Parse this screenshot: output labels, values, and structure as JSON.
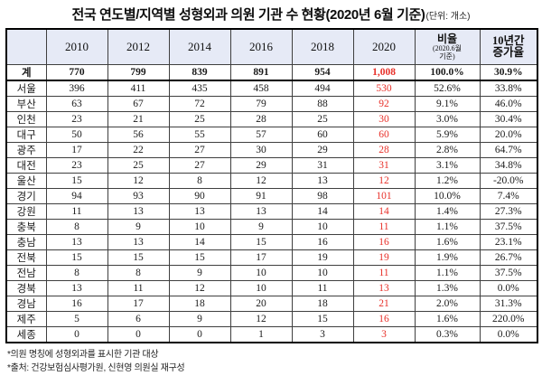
{
  "title": {
    "main": "전국 연도별/지역별 성형외과 의원 기관 수 현황(2020년 6월 기준)",
    "unit": "(단위: 개소)"
  },
  "table": {
    "region_header": "",
    "years": [
      "2010",
      "2012",
      "2014",
      "2016",
      "2018",
      "2020"
    ],
    "ratio_header": {
      "main": "비율",
      "sub1": "(2020.6월",
      "sub2": "기준)"
    },
    "growth_header": {
      "line1": "10년간",
      "line2": "증가율"
    }
  },
  "footnotes": [
    "*의원 명칭에 성형외과를 표시한 기관 대상",
    "*출처: 건강보험심사평가원, 신현영 의원실 재구성"
  ],
  "colors": {
    "highlight_red": "#e8312a",
    "header_bg": "#e6eaf6",
    "outer_border": "#000000"
  },
  "chart_data": {
    "type": "table",
    "title": "전국 연도별/지역별 성형외과 의원 기관 수 현황(2020년 6월 기준)",
    "unit": "개소",
    "categories": [
      "2010",
      "2012",
      "2014",
      "2016",
      "2018",
      "2020"
    ],
    "ratio_label": "비율(2020.6월 기준)",
    "growth_label": "10년간 증가율",
    "highlight_column": "2020",
    "series": [
      {
        "name": "계",
        "values": [
          770,
          799,
          839,
          891,
          954,
          1008
        ],
        "ratio": "100.0%",
        "growth": "30.9%"
      },
      {
        "name": "서울",
        "values": [
          396,
          411,
          435,
          458,
          494,
          530
        ],
        "ratio": "52.6%",
        "growth": "33.8%"
      },
      {
        "name": "부산",
        "values": [
          63,
          67,
          72,
          79,
          88,
          92
        ],
        "ratio": "9.1%",
        "growth": "46.0%"
      },
      {
        "name": "인천",
        "values": [
          23,
          21,
          25,
          28,
          25,
          30
        ],
        "ratio": "3.0%",
        "growth": "30.4%"
      },
      {
        "name": "대구",
        "values": [
          50,
          56,
          55,
          57,
          60,
          60
        ],
        "ratio": "5.9%",
        "growth": "20.0%"
      },
      {
        "name": "광주",
        "values": [
          17,
          22,
          27,
          30,
          29,
          28
        ],
        "ratio": "2.8%",
        "growth": "64.7%"
      },
      {
        "name": "대전",
        "values": [
          23,
          25,
          27,
          29,
          31,
          31
        ],
        "ratio": "3.1%",
        "growth": "34.8%"
      },
      {
        "name": "울산",
        "values": [
          15,
          12,
          8,
          12,
          13,
          12
        ],
        "ratio": "1.2%",
        "growth": "-20.0%"
      },
      {
        "name": "경기",
        "values": [
          94,
          93,
          90,
          91,
          98,
          101
        ],
        "ratio": "10.0%",
        "growth": "7.4%"
      },
      {
        "name": "강원",
        "values": [
          11,
          13,
          13,
          13,
          14,
          14
        ],
        "ratio": "1.4%",
        "growth": "27.3%"
      },
      {
        "name": "충북",
        "values": [
          8,
          9,
          10,
          9,
          10,
          11
        ],
        "ratio": "1.1%",
        "growth": "37.5%"
      },
      {
        "name": "충남",
        "values": [
          13,
          13,
          14,
          15,
          16,
          16
        ],
        "ratio": "1.6%",
        "growth": "23.1%"
      },
      {
        "name": "전북",
        "values": [
          15,
          15,
          15,
          17,
          19,
          19
        ],
        "ratio": "1.9%",
        "growth": "26.7%"
      },
      {
        "name": "전남",
        "values": [
          8,
          8,
          9,
          10,
          10,
          11
        ],
        "ratio": "1.1%",
        "growth": "37.5%"
      },
      {
        "name": "경북",
        "values": [
          13,
          11,
          12,
          10,
          11,
          13
        ],
        "ratio": "1.3%",
        "growth": "0.0%"
      },
      {
        "name": "경남",
        "values": [
          16,
          17,
          18,
          20,
          18,
          21
        ],
        "ratio": "2.0%",
        "growth": "31.3%"
      },
      {
        "name": "제주",
        "values": [
          5,
          6,
          9,
          12,
          15,
          16
        ],
        "ratio": "1.6%",
        "growth": "220.0%"
      },
      {
        "name": "세종",
        "values": [
          0,
          0,
          0,
          1,
          3,
          3
        ],
        "ratio": "0.3%",
        "growth": "0.0%"
      }
    ]
  }
}
